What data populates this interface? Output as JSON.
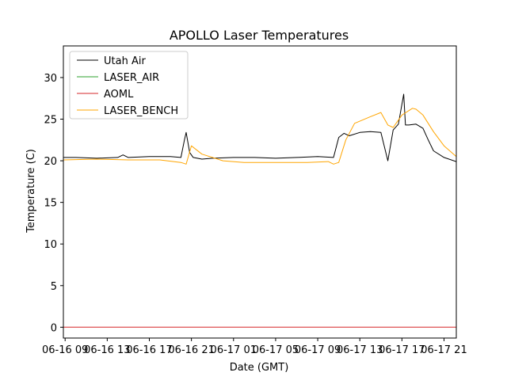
{
  "chart_data": {
    "type": "line",
    "title": "APOLLO Laser Temperatures",
    "xlabel": "Date (GMT)",
    "ylabel": "Temperature (C)",
    "xlim": [
      "06-16 08:50",
      "06-17 22:10"
    ],
    "ylim": [
      -1.3,
      33.8
    ],
    "x_ticks": [
      "06-16 09",
      "06-16 13",
      "06-16 17",
      "06-16 21",
      "06-17 01",
      "06-17 05",
      "06-17 09",
      "06-17 13",
      "06-17 17",
      "06-17 21"
    ],
    "y_ticks": [
      0,
      5,
      10,
      15,
      20,
      25,
      30
    ],
    "grid": false,
    "legend_position": "top-left",
    "series": [
      {
        "name": "Utah Air",
        "color": "#000000",
        "x": [
          "06-16 08:50",
          "06-16 10:00",
          "06-16 12:00",
          "06-16 14:00",
          "06-16 14:30",
          "06-16 15:00",
          "06-16 17:00",
          "06-16 19:00",
          "06-16 20:00",
          "06-16 20:20",
          "06-16 20:30",
          "06-16 20:50",
          "06-16 21:10",
          "06-16 22:00",
          "06-16 23:00",
          "06-17 01:00",
          "06-17 03:00",
          "06-17 05:00",
          "06-17 07:00",
          "06-17 09:00",
          "06-17 10:30",
          "06-17 11:00",
          "06-17 11:30",
          "06-17 12:00",
          "06-17 13:00",
          "06-17 14:00",
          "06-17 15:00",
          "06-17 15:40",
          "06-17 16:10",
          "06-17 16:40",
          "06-17 17:10",
          "06-17 17:20",
          "06-17 17:40",
          "06-17 18:20",
          "06-17 19:00",
          "06-17 19:30",
          "06-17 20:00",
          "06-17 21:00",
          "06-17 22:10"
        ],
        "y": [
          20.4,
          20.4,
          20.3,
          20.4,
          20.7,
          20.4,
          20.5,
          20.5,
          20.4,
          22.5,
          23.4,
          21.0,
          20.4,
          20.2,
          20.3,
          20.4,
          20.4,
          20.3,
          20.4,
          20.5,
          20.4,
          22.8,
          23.3,
          23.0,
          23.4,
          23.5,
          23.4,
          20.0,
          23.7,
          24.4,
          28.0,
          24.3,
          24.3,
          24.4,
          23.9,
          22.5,
          21.2,
          20.4,
          19.9
        ]
      },
      {
        "name": "LASER_AIR",
        "color": "#2ca02c",
        "x": [],
        "y": []
      },
      {
        "name": "AOML",
        "color": "#d62728",
        "x": [
          "06-16 08:50",
          "06-17 22:10"
        ],
        "y": [
          0,
          0
        ]
      },
      {
        "name": "LASER_BENCH",
        "color": "#ffa500",
        "x": [
          "06-16 08:50",
          "06-16 12:00",
          "06-16 15:00",
          "06-16 18:00",
          "06-16 20:00",
          "06-16 20:30",
          "06-16 21:00",
          "06-16 22:00",
          "06-17 00:00",
          "06-17 02:00",
          "06-17 05:00",
          "06-17 08:00",
          "06-17 10:00",
          "06-17 10:30",
          "06-17 11:00",
          "06-17 11:40",
          "06-17 12:30",
          "06-17 14:00",
          "06-17 15:00",
          "06-17 15:40",
          "06-17 16:10",
          "06-17 17:00",
          "06-17 18:00",
          "06-17 18:20",
          "06-17 19:00",
          "06-17 20:00",
          "06-17 21:00",
          "06-17 22:10"
        ],
        "y": [
          20.1,
          20.2,
          20.1,
          20.1,
          19.8,
          19.6,
          21.8,
          20.8,
          20.0,
          19.8,
          19.8,
          19.8,
          19.9,
          19.6,
          19.8,
          22.5,
          24.5,
          25.3,
          25.8,
          24.3,
          24.0,
          25.5,
          26.3,
          26.2,
          25.5,
          23.5,
          21.8,
          20.5
        ]
      }
    ]
  }
}
